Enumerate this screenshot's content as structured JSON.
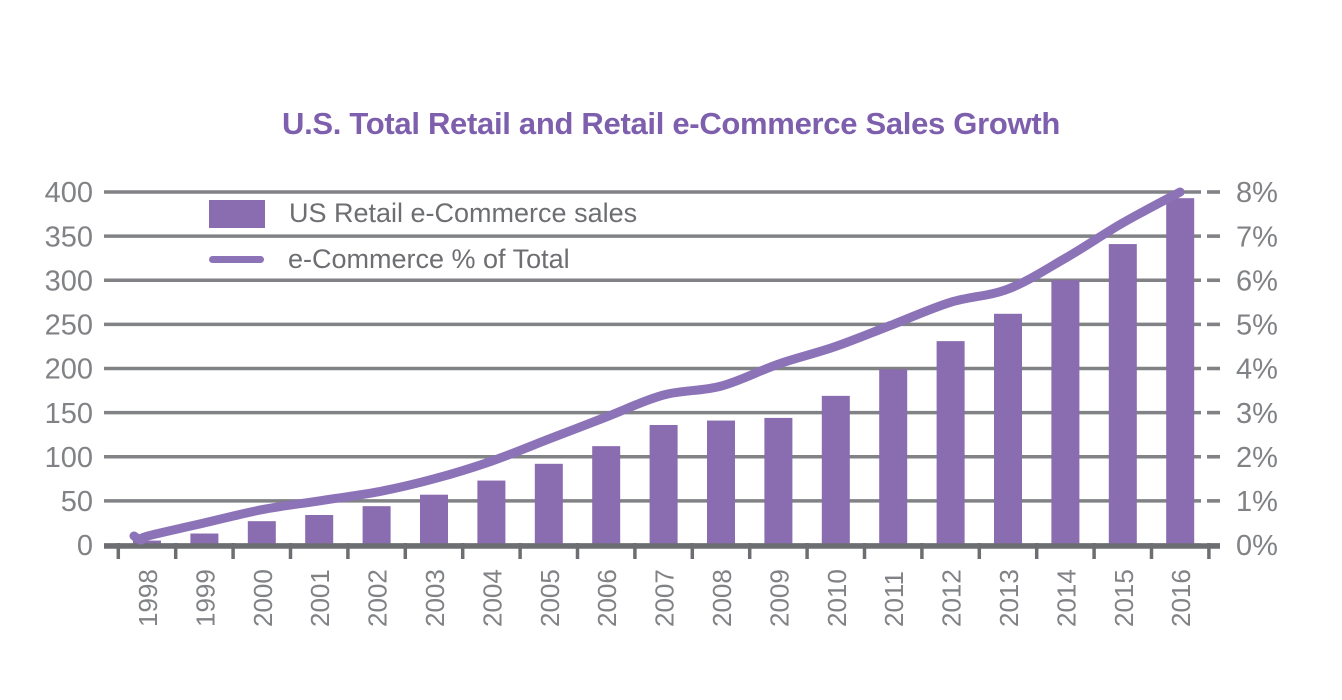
{
  "title": {
    "text": "U.S. Total Retail and Retail e-Commerce Sales Growth",
    "color": "#7E5FAD"
  },
  "legend": [
    {
      "label": "US Retail e-Commerce sales",
      "swatch": "bar-swatch",
      "color": "#8A6CB0"
    },
    {
      "label": "e-Commerce % of Total",
      "swatch": "line-swatch",
      "color": "#8C73B8"
    }
  ],
  "colors": {
    "bar": "#8A6CB0",
    "line": "#8C73B8",
    "title": "#7E5FAD",
    "grid": "#808285",
    "axis": "#6D6E71",
    "tick_text": "#808285",
    "legend_text": "#6D6E71",
    "background": "#FFFFFF"
  },
  "chart_data": {
    "type": "bar",
    "title": "U.S. Total Retail and Retail e-Commerce Sales Growth",
    "categories": [
      "1998",
      "1999",
      "2000",
      "2001",
      "2002",
      "2003",
      "2004",
      "2005",
      "2006",
      "2007",
      "2008",
      "2009",
      "2010",
      "2011",
      "2012",
      "2013",
      "2014",
      "2015",
      "2016"
    ],
    "series": [
      {
        "name": "US Retail e-Commerce sales",
        "type": "bar",
        "axis": "left",
        "color": "#8A6CB0",
        "values": [
          5,
          13,
          27,
          34,
          44,
          57,
          73,
          92,
          112,
          136,
          141,
          144,
          169,
          199,
          231,
          262,
          300,
          341,
          393
        ]
      },
      {
        "name": "e-Commerce % of Total",
        "type": "line",
        "axis": "right",
        "color": "#8C73B8",
        "values": [
          0.2,
          0.5,
          0.8,
          1.0,
          1.2,
          1.5,
          1.9,
          2.4,
          2.9,
          3.4,
          3.6,
          4.1,
          4.5,
          5.0,
          5.5,
          5.8,
          6.5,
          7.3,
          8.0
        ]
      }
    ],
    "left_axis": {
      "range": [
        0,
        400
      ],
      "tick_step": 50,
      "tick_labels": [
        "0",
        "50",
        "100",
        "150",
        "200",
        "250",
        "300",
        "350",
        "400"
      ]
    },
    "right_axis": {
      "range": [
        0,
        8
      ],
      "tick_step": 1,
      "tick_labels": [
        "0%",
        "1%",
        "2%",
        "3%",
        "4%",
        "5%",
        "6%",
        "7%",
        "8%"
      ]
    },
    "grid": true,
    "legend_position": "top-left",
    "xlabel": "",
    "ylabel": ""
  }
}
